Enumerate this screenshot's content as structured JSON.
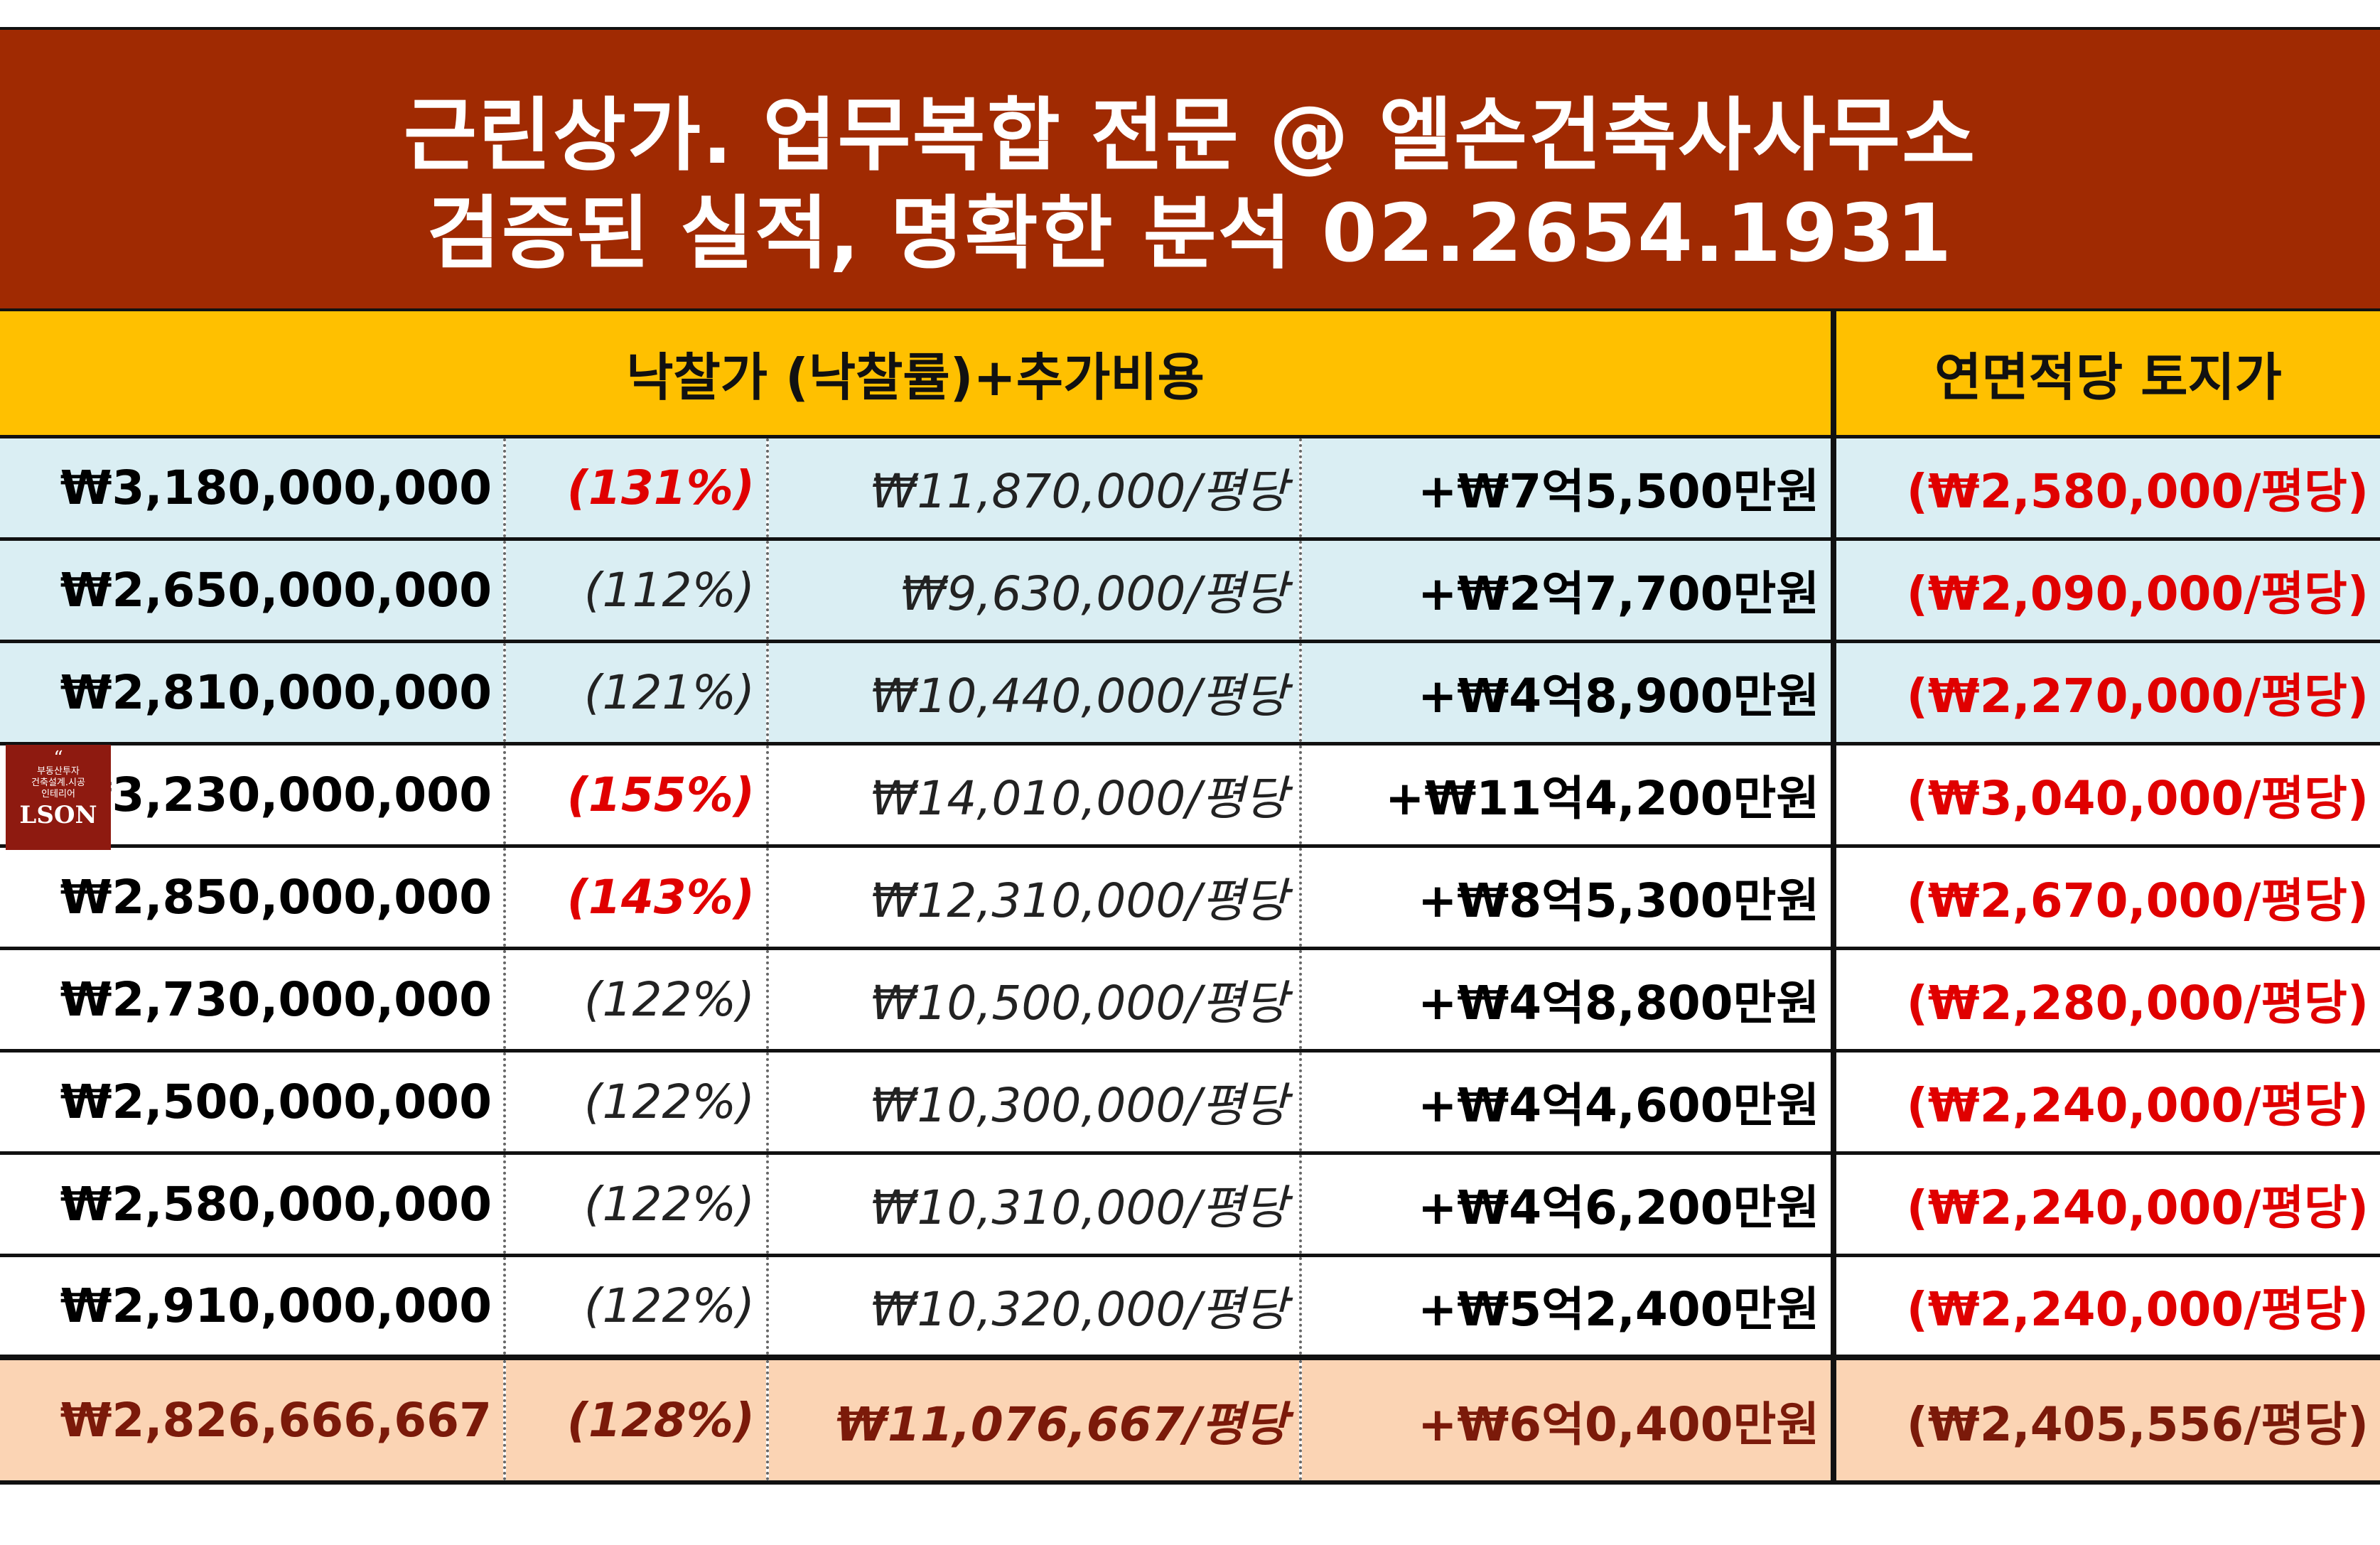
{
  "banner": {
    "line1": "근린상가. 업무복합 전문 @ 엘손건축사사무소",
    "line2": "검증된 실적, 명확한 분석 02.2654.1931"
  },
  "header": {
    "left": "낙찰가 (낙찰률)+추가비용",
    "right": "연면적당 토지가"
  },
  "rows": [
    {
      "price": "₩3,180,000,000",
      "rate": "(131%)",
      "unit": "₩11,870,000/평당",
      "extra": "+₩7억5,500만원",
      "land": "(₩2,580,000/평당)"
    },
    {
      "price": "₩2,650,000,000",
      "rate": "(112%)",
      "unit": "₩9,630,000/평당",
      "extra": "+₩2억7,700만원",
      "land": "(₩2,090,000/평당)"
    },
    {
      "price": "₩2,810,000,000",
      "rate": "(121%)",
      "unit": "₩10,440,000/평당",
      "extra": "+₩4억8,900만원",
      "land": "(₩2,270,000/평당)"
    },
    {
      "price": "₩3,230,000,000",
      "rate": "(155%)",
      "unit": "₩14,010,000/평당",
      "extra": "+₩11억4,200만원",
      "land": "(₩3,040,000/평당)"
    },
    {
      "price": "₩2,850,000,000",
      "rate": "(143%)",
      "unit": "₩12,310,000/평당",
      "extra": "+₩8억5,300만원",
      "land": "(₩2,670,000/평당)"
    },
    {
      "price": "₩2,730,000,000",
      "rate": "(122%)",
      "unit": "₩10,500,000/평당",
      "extra": "+₩4억8,800만원",
      "land": "(₩2,280,000/평당)"
    },
    {
      "price": "₩2,500,000,000",
      "rate": "(122%)",
      "unit": "₩10,300,000/평당",
      "extra": "+₩4억4,600만원",
      "land": "(₩2,240,000/평당)"
    },
    {
      "price": "₩2,580,000,000",
      "rate": "(122%)",
      "unit": "₩10,310,000/평당",
      "extra": "+₩4억6,200만원",
      "land": "(₩2,240,000/평당)"
    },
    {
      "price": "₩2,910,000,000",
      "rate": "(122%)",
      "unit": "₩10,320,000/평당",
      "extra": "+₩5억2,400만원",
      "land": "(₩2,240,000/평당)"
    }
  ],
  "average": {
    "price": "₩2,826,666,667",
    "rate": "(128%)",
    "unit": "₩11,076,667/평당",
    "extra": "+₩6억0,400만원",
    "land": "(₩2,405,556/평당)"
  },
  "logo": {
    "top": "부동산투자",
    "mid1": "건축설계.시공",
    "mid2": "인테리어",
    "brand": "LSON"
  },
  "colors": {
    "banner": "#a02a02",
    "header": "#ffc000",
    "blue_row": "#daeef3",
    "avg_row": "#fbd4b4",
    "highlight": "#e00000"
  }
}
